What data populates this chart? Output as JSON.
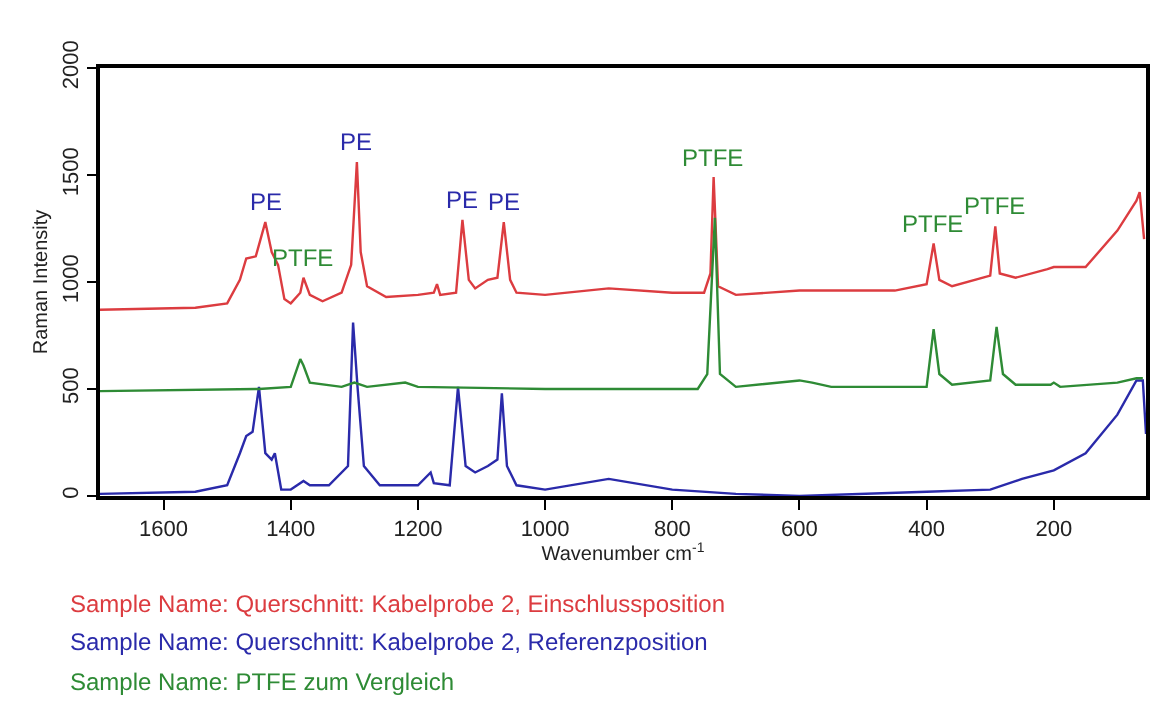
{
  "chart_data": {
    "type": "line",
    "xlabel": "Wavenumber cm$^{-1}$",
    "ylabel": "Raman Intensity",
    "x": [
      1700,
      1550,
      1500,
      1480,
      1470,
      1455,
      1440,
      1430,
      1420,
      1410,
      1400,
      1385,
      1380,
      1370,
      1350,
      1320,
      1305,
      1296,
      1290,
      1280,
      1250,
      1200,
      1175,
      1170,
      1165,
      1140,
      1130,
      1120,
      1110,
      1090,
      1075,
      1065,
      1055,
      1045,
      1000,
      900,
      800,
      750,
      740,
      735,
      728,
      700,
      600,
      450,
      400,
      389,
      380,
      360,
      300,
      292,
      285,
      260,
      210,
      200,
      150,
      100,
      70,
      65,
      58
    ],
    "series": [
      {
        "name": "Sample Name: Querschnitt: Kabelprobe 2, Einschlussposition",
        "color": "#dc3c40",
        "values": [
          870,
          880,
          900,
          1010,
          1110,
          1120,
          1280,
          1140,
          1080,
          920,
          900,
          950,
          1020,
          940,
          910,
          950,
          1080,
          1560,
          1140,
          980,
          930,
          940,
          950,
          990,
          940,
          950,
          1290,
          1010,
          970,
          1010,
          1020,
          1280,
          1010,
          950,
          940,
          970,
          950,
          950,
          1040,
          1490,
          980,
          940,
          960,
          960,
          990,
          1180,
          1010,
          980,
          1030,
          1260,
          1040,
          1020,
          1060,
          1070,
          1070,
          1240,
          1380,
          1420,
          1200
        ]
      },
      {
        "name": "Sample Name: Querschnitt: Kabelprobe 2, Referenzposition",
        "color": "#2a2aaa",
        "x": [
          1700,
          1550,
          1500,
          1480,
          1470,
          1460,
          1450,
          1440,
          1430,
          1425,
          1415,
          1400,
          1380,
          1370,
          1340,
          1310,
          1302,
          1295,
          1285,
          1260,
          1200,
          1180,
          1175,
          1150,
          1137,
          1125,
          1110,
          1090,
          1075,
          1068,
          1060,
          1045,
          1000,
          900,
          800,
          700,
          600,
          400,
          300,
          250,
          200,
          150,
          100,
          70,
          60,
          55
        ],
        "values": [
          10,
          20,
          50,
          200,
          280,
          300,
          510,
          200,
          170,
          200,
          30,
          30,
          70,
          50,
          50,
          140,
          810,
          510,
          140,
          50,
          50,
          110,
          60,
          50,
          510,
          140,
          110,
          140,
          170,
          480,
          140,
          50,
          30,
          80,
          30,
          10,
          0,
          20,
          30,
          80,
          120,
          200,
          380,
          540,
          540,
          290
        ]
      },
      {
        "name": "Sample Name: PTFE zum Vergleich",
        "color": "#2e8b35",
        "x": [
          1700,
          1450,
          1400,
          1385,
          1380,
          1370,
          1320,
          1300,
          1280,
          1220,
          1200,
          1000,
          900,
          760,
          745,
          733,
          725,
          700,
          600,
          580,
          550,
          400,
          389,
          380,
          360,
          300,
          290,
          280,
          260,
          205,
          200,
          190,
          100,
          70,
          60
        ],
        "values": [
          490,
          500,
          510,
          640,
          610,
          530,
          510,
          530,
          510,
          530,
          510,
          500,
          500,
          500,
          570,
          1300,
          570,
          510,
          540,
          530,
          510,
          510,
          780,
          570,
          520,
          540,
          790,
          570,
          520,
          520,
          530,
          510,
          530,
          550,
          550
        ]
      }
    ],
    "xlim": [
      1700,
      55
    ],
    "xticks": [
      1600,
      1400,
      1200,
      1000,
      800,
      600,
      400,
      200
    ],
    "ylim": [
      0,
      2000
    ],
    "yticks": [
      0,
      500,
      1000,
      1500,
      2000
    ],
    "marker": "none",
    "line_style": "solid",
    "annotations": [
      {
        "text": "PE",
        "x": 1440,
        "y": 1280
      },
      {
        "text": "PE",
        "x": 1296,
        "y": 1560
      },
      {
        "text": "PE",
        "x": 1130,
        "y": 1290
      },
      {
        "text": "PE",
        "x": 1065,
        "y": 1280
      },
      {
        "text": "PTFE",
        "x": 1380,
        "y": 1020
      },
      {
        "text": "PTFE",
        "x": 735,
        "y": 1490
      },
      {
        "text": "PTFE",
        "x": 389,
        "y": 1180
      },
      {
        "text": "PTFE",
        "x": 292,
        "y": 1260
      }
    ]
  }
}
